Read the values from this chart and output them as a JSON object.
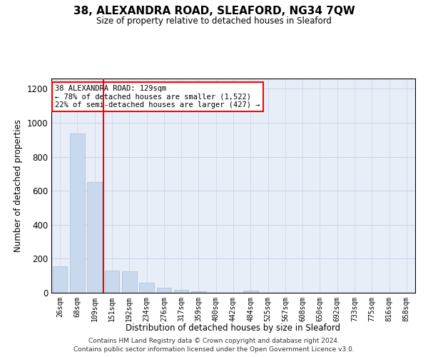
{
  "title": "38, ALEXANDRA ROAD, SLEAFORD, NG34 7QW",
  "subtitle": "Size of property relative to detached houses in Sleaford",
  "xlabel": "Distribution of detached houses by size in Sleaford",
  "ylabel": "Number of detached properties",
  "categories": [
    "26sqm",
    "68sqm",
    "109sqm",
    "151sqm",
    "192sqm",
    "234sqm",
    "276sqm",
    "317sqm",
    "359sqm",
    "400sqm",
    "442sqm",
    "484sqm",
    "525sqm",
    "567sqm",
    "608sqm",
    "650sqm",
    "692sqm",
    "733sqm",
    "775sqm",
    "816sqm",
    "858sqm"
  ],
  "values": [
    155,
    935,
    650,
    130,
    125,
    58,
    30,
    18,
    10,
    0,
    0,
    13,
    0,
    0,
    0,
    0,
    0,
    0,
    0,
    0,
    0
  ],
  "bar_color": "#c8d9ed",
  "bar_edge_color": "#a8bfd4",
  "red_line_index": 2,
  "annotation_line1": "38 ALEXANDRA ROAD: 129sqm",
  "annotation_line2": "← 78% of detached houses are smaller (1,522)",
  "annotation_line3": "22% of semi-detached houses are larger (427) →",
  "annotation_box_color": "white",
  "annotation_box_edge": "red",
  "ylim": [
    0,
    1260
  ],
  "yticks": [
    0,
    200,
    400,
    600,
    800,
    1000,
    1200
  ],
  "grid_color": "#c8d4e8",
  "bg_color": "#e8eef8",
  "footnote_line1": "Contains HM Land Registry data © Crown copyright and database right 2024.",
  "footnote_line2": "Contains public sector information licensed under the Open Government Licence v3.0."
}
